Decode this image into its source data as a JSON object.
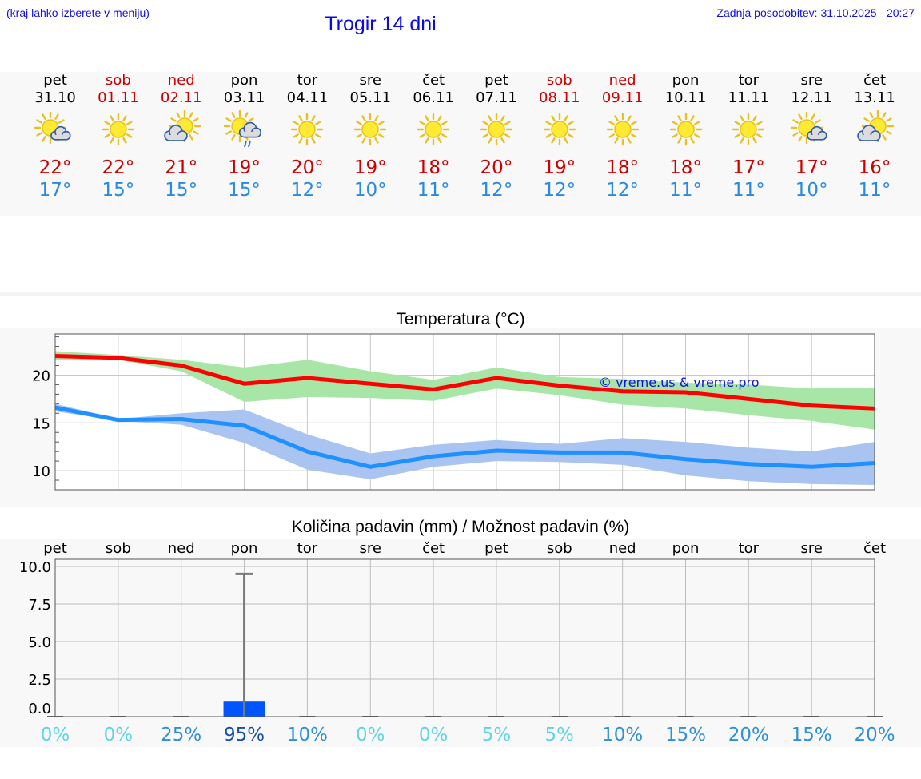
{
  "header": {
    "hint": "(kraj lahko izberete v meniju)",
    "title": "Trogir 14 dni",
    "updated": "Zadnja posodobitev: 31.10.2025 - 20:27"
  },
  "days": [
    {
      "name": "pet",
      "date": "31.10",
      "weekend": false,
      "icon": "sun-cloud",
      "tmax": "22°",
      "tmin": "17°"
    },
    {
      "name": "sob",
      "date": "01.11",
      "weekend": true,
      "icon": "sun",
      "tmax": "22°",
      "tmin": "15°"
    },
    {
      "name": "ned",
      "date": "02.11",
      "weekend": true,
      "icon": "cloud-sun",
      "tmax": "21°",
      "tmin": "15°"
    },
    {
      "name": "pon",
      "date": "03.11",
      "weekend": false,
      "icon": "sun-rain",
      "tmax": "19°",
      "tmin": "15°"
    },
    {
      "name": "tor",
      "date": "04.11",
      "weekend": false,
      "icon": "sun",
      "tmax": "20°",
      "tmin": "12°"
    },
    {
      "name": "sre",
      "date": "05.11",
      "weekend": false,
      "icon": "sun",
      "tmax": "19°",
      "tmin": "10°"
    },
    {
      "name": "čet",
      "date": "06.11",
      "weekend": false,
      "icon": "sun",
      "tmax": "18°",
      "tmin": "11°"
    },
    {
      "name": "pet",
      "date": "07.11",
      "weekend": false,
      "icon": "sun",
      "tmax": "20°",
      "tmin": "12°"
    },
    {
      "name": "sob",
      "date": "08.11",
      "weekend": true,
      "icon": "sun",
      "tmax": "19°",
      "tmin": "12°"
    },
    {
      "name": "ned",
      "date": "09.11",
      "weekend": true,
      "icon": "sun",
      "tmax": "18°",
      "tmin": "12°"
    },
    {
      "name": "pon",
      "date": "10.11",
      "weekend": false,
      "icon": "sun",
      "tmax": "18°",
      "tmin": "11°"
    },
    {
      "name": "tor",
      "date": "11.11",
      "weekend": false,
      "icon": "sun",
      "tmax": "17°",
      "tmin": "11°"
    },
    {
      "name": "sre",
      "date": "12.11",
      "weekend": false,
      "icon": "sun-cloud",
      "tmax": "17°",
      "tmin": "10°"
    },
    {
      "name": "čet",
      "date": "13.11",
      "weekend": false,
      "icon": "cloud-sun",
      "tmax": "16°",
      "tmin": "11°"
    }
  ],
  "colors": {
    "max_line": "#ff0000",
    "max_band": "#a8e6a8",
    "min_line": "#1e90ff",
    "min_band": "#aac4f2",
    "precip_bar": "#0055ff",
    "pct_low": "#5fd4e6",
    "pct_mid": "#2f8fd8",
    "pct_high": "#1550a8"
  },
  "chart_data": [
    {
      "type": "line",
      "title": "Temperatura (°C)",
      "watermark": "© vreme.us & vreme.pro",
      "ylim": [
        8,
        24.3
      ],
      "yticks": [
        10,
        15,
        20
      ],
      "x": [
        0,
        1,
        2,
        3,
        4,
        5,
        6,
        7,
        8,
        9,
        10,
        11,
        12,
        13
      ],
      "series": [
        {
          "name": "max",
          "values": [
            22.0,
            21.8,
            21.0,
            19.1,
            19.7,
            19.1,
            18.5,
            19.7,
            18.9,
            18.3,
            18.2,
            17.5,
            16.8,
            16.5
          ],
          "band_low": [
            21.6,
            21.6,
            20.4,
            17.2,
            17.7,
            17.6,
            17.3,
            18.6,
            17.9,
            16.9,
            16.5,
            15.8,
            15.2,
            14.3
          ],
          "band_high": [
            22.5,
            22.1,
            21.6,
            20.8,
            21.6,
            20.4,
            19.5,
            20.8,
            19.8,
            19.6,
            19.2,
            19.0,
            18.6,
            18.7
          ]
        },
        {
          "name": "min",
          "values": [
            16.6,
            15.3,
            15.4,
            14.7,
            12.0,
            10.4,
            11.5,
            12.1,
            11.9,
            11.9,
            11.2,
            10.7,
            10.4,
            10.8
          ],
          "band_low": [
            16.2,
            15.2,
            14.8,
            12.9,
            10.1,
            9.1,
            10.4,
            11.0,
            10.9,
            10.6,
            9.5,
            8.9,
            8.6,
            8.5
          ],
          "band_high": [
            17.0,
            15.4,
            16.0,
            16.4,
            13.8,
            11.8,
            12.7,
            13.2,
            12.8,
            13.4,
            13.0,
            12.4,
            12.0,
            13.0
          ]
        }
      ]
    },
    {
      "type": "bar",
      "title": "Količina padavin (mm) / Možnost padavin (%)",
      "ylim": [
        0,
        10
      ],
      "yticks": [
        "0.0",
        "2.5",
        "5.0",
        "7.5",
        "10.0"
      ],
      "categories": [
        "pet",
        "sob",
        "ned",
        "pon",
        "tor",
        "sre",
        "čet",
        "pet",
        "sob",
        "ned",
        "pon",
        "tor",
        "sre",
        "čet"
      ],
      "values": [
        0,
        0,
        0,
        1.0,
        0,
        0,
        0,
        0,
        0,
        0,
        0,
        0,
        0,
        0
      ],
      "error_high": [
        0,
        0,
        0,
        9.5,
        0,
        0,
        0,
        0,
        0,
        0,
        0,
        0,
        0,
        0
      ],
      "probability": [
        "0%",
        "0%",
        "25%",
        "95%",
        "10%",
        "0%",
        "0%",
        "5%",
        "5%",
        "10%",
        "15%",
        "20%",
        "15%",
        "20%"
      ]
    }
  ]
}
